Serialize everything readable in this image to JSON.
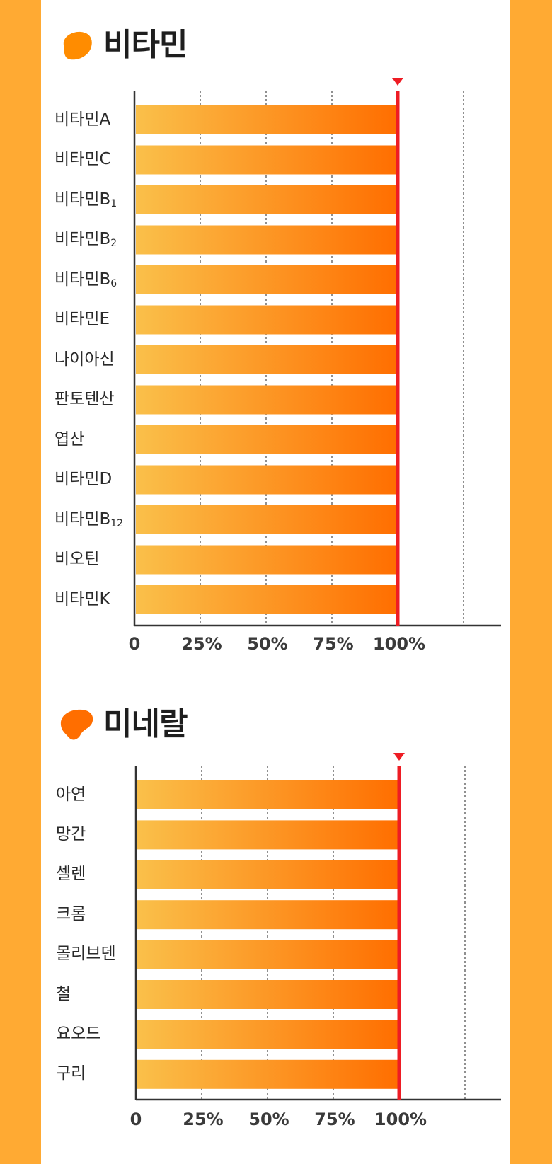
{
  "colors": {
    "frame": "#FFAA33",
    "bar_start": "#FAC04A",
    "bar_end": "#FF6E00",
    "target_line": "#EE1C24",
    "blob_vitamin": "#FF8C00",
    "blob_mineral": "#FF6E00"
  },
  "chart_data": [
    {
      "type": "bar",
      "orientation": "horizontal",
      "title": "비타민",
      "categories": [
        {
          "base": "비타민A",
          "sub": ""
        },
        {
          "base": "비타민C",
          "sub": ""
        },
        {
          "base": "비타민B",
          "sub": "1"
        },
        {
          "base": "비타민B",
          "sub": "2"
        },
        {
          "base": "비타민B",
          "sub": "6"
        },
        {
          "base": "비타민E",
          "sub": ""
        },
        {
          "base": "나이아신",
          "sub": ""
        },
        {
          "base": "판토텐산",
          "sub": ""
        },
        {
          "base": "엽산",
          "sub": ""
        },
        {
          "base": "비타민D",
          "sub": ""
        },
        {
          "base": "비타민B",
          "sub": "12"
        },
        {
          "base": "비오틴",
          "sub": ""
        },
        {
          "base": "비타민K",
          "sub": ""
        }
      ],
      "values": [
        100,
        100,
        100,
        100,
        100,
        100,
        100,
        100,
        100,
        100,
        100,
        100,
        100
      ],
      "xlim": [
        0,
        125
      ],
      "ticks": [
        0,
        25,
        50,
        75,
        100
      ],
      "tick_labels": [
        "0",
        "25%",
        "50%",
        "75%",
        "100%"
      ],
      "gridlines": [
        25,
        50,
        75,
        125
      ],
      "reference_line": 100
    },
    {
      "type": "bar",
      "orientation": "horizontal",
      "title": "미네랄",
      "categories": [
        {
          "base": "아연",
          "sub": ""
        },
        {
          "base": "망간",
          "sub": ""
        },
        {
          "base": "셀렌",
          "sub": ""
        },
        {
          "base": "크롬",
          "sub": ""
        },
        {
          "base": "몰리브덴",
          "sub": ""
        },
        {
          "base": "철",
          "sub": ""
        },
        {
          "base": "요오드",
          "sub": ""
        },
        {
          "base": "구리",
          "sub": ""
        }
      ],
      "values": [
        100,
        100,
        100,
        100,
        100,
        100,
        100,
        100
      ],
      "xlim": [
        0,
        125
      ],
      "ticks": [
        0,
        25,
        50,
        75,
        100
      ],
      "tick_labels": [
        "0",
        "25%",
        "50%",
        "75%",
        "100%"
      ],
      "gridlines": [
        25,
        50,
        75,
        125
      ],
      "reference_line": 100
    }
  ]
}
